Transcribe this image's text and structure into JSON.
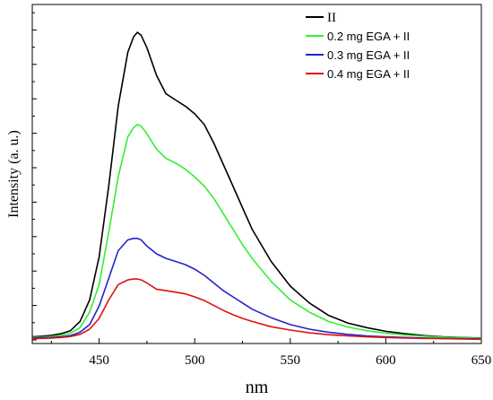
{
  "chart_data": {
    "type": "line",
    "title": "",
    "xlabel": "nm",
    "ylabel": "Intensity (a. u.)",
    "xlim": [
      415,
      650
    ],
    "ylim": [
      0,
      1.0
    ],
    "xticks": [
      450,
      500,
      550,
      600,
      650
    ],
    "y_tick_labels": false,
    "grid": false,
    "legend_position": "top-right",
    "x": [
      415,
      420,
      425,
      430,
      435,
      440,
      445,
      450,
      455,
      460,
      465,
      468,
      470,
      472,
      475,
      480,
      485,
      490,
      495,
      500,
      505,
      510,
      515,
      520,
      525,
      530,
      540,
      550,
      560,
      570,
      580,
      590,
      600,
      610,
      620,
      630,
      640,
      650
    ],
    "series": [
      {
        "name": "II",
        "color": "#000000",
        "values": [
          0.01,
          0.012,
          0.015,
          0.02,
          0.03,
          0.06,
          0.13,
          0.27,
          0.5,
          0.76,
          0.935,
          0.985,
          1.0,
          0.99,
          0.95,
          0.86,
          0.8,
          0.78,
          0.76,
          0.735,
          0.7,
          0.64,
          0.57,
          0.5,
          0.43,
          0.36,
          0.255,
          0.175,
          0.12,
          0.08,
          0.055,
          0.04,
          0.028,
          0.02,
          0.014,
          0.01,
          0.008,
          0.006
        ]
      },
      {
        "name": "0.2 mg EGA + II",
        "color": "#33ee33",
        "values": [
          0.008,
          0.009,
          0.011,
          0.015,
          0.022,
          0.04,
          0.09,
          0.18,
          0.35,
          0.53,
          0.66,
          0.69,
          0.7,
          0.695,
          0.67,
          0.62,
          0.59,
          0.575,
          0.555,
          0.53,
          0.5,
          0.46,
          0.41,
          0.36,
          0.31,
          0.265,
          0.19,
          0.13,
          0.09,
          0.06,
          0.042,
          0.03,
          0.022,
          0.016,
          0.012,
          0.009,
          0.007,
          0.005
        ]
      },
      {
        "name": "0.3 mg EGA + II",
        "color": "#2222cc",
        "values": [
          0.006,
          0.007,
          0.008,
          0.01,
          0.014,
          0.025,
          0.05,
          0.11,
          0.2,
          0.29,
          0.325,
          0.33,
          0.33,
          0.325,
          0.305,
          0.28,
          0.265,
          0.255,
          0.245,
          0.23,
          0.21,
          0.185,
          0.16,
          0.14,
          0.12,
          0.1,
          0.072,
          0.05,
          0.035,
          0.025,
          0.018,
          0.013,
          0.01,
          0.008,
          0.006,
          0.005,
          0.004,
          0.003
        ]
      },
      {
        "name": "0.4 mg EGA + II",
        "color": "#dd1111",
        "values": [
          0.004,
          0.005,
          0.006,
          0.008,
          0.011,
          0.018,
          0.035,
          0.07,
          0.13,
          0.18,
          0.195,
          0.198,
          0.198,
          0.195,
          0.185,
          0.165,
          0.16,
          0.155,
          0.15,
          0.14,
          0.128,
          0.112,
          0.096,
          0.082,
          0.07,
          0.06,
          0.043,
          0.032,
          0.023,
          0.017,
          0.013,
          0.01,
          0.008,
          0.006,
          0.005,
          0.004,
          0.003,
          0.002
        ]
      }
    ]
  }
}
